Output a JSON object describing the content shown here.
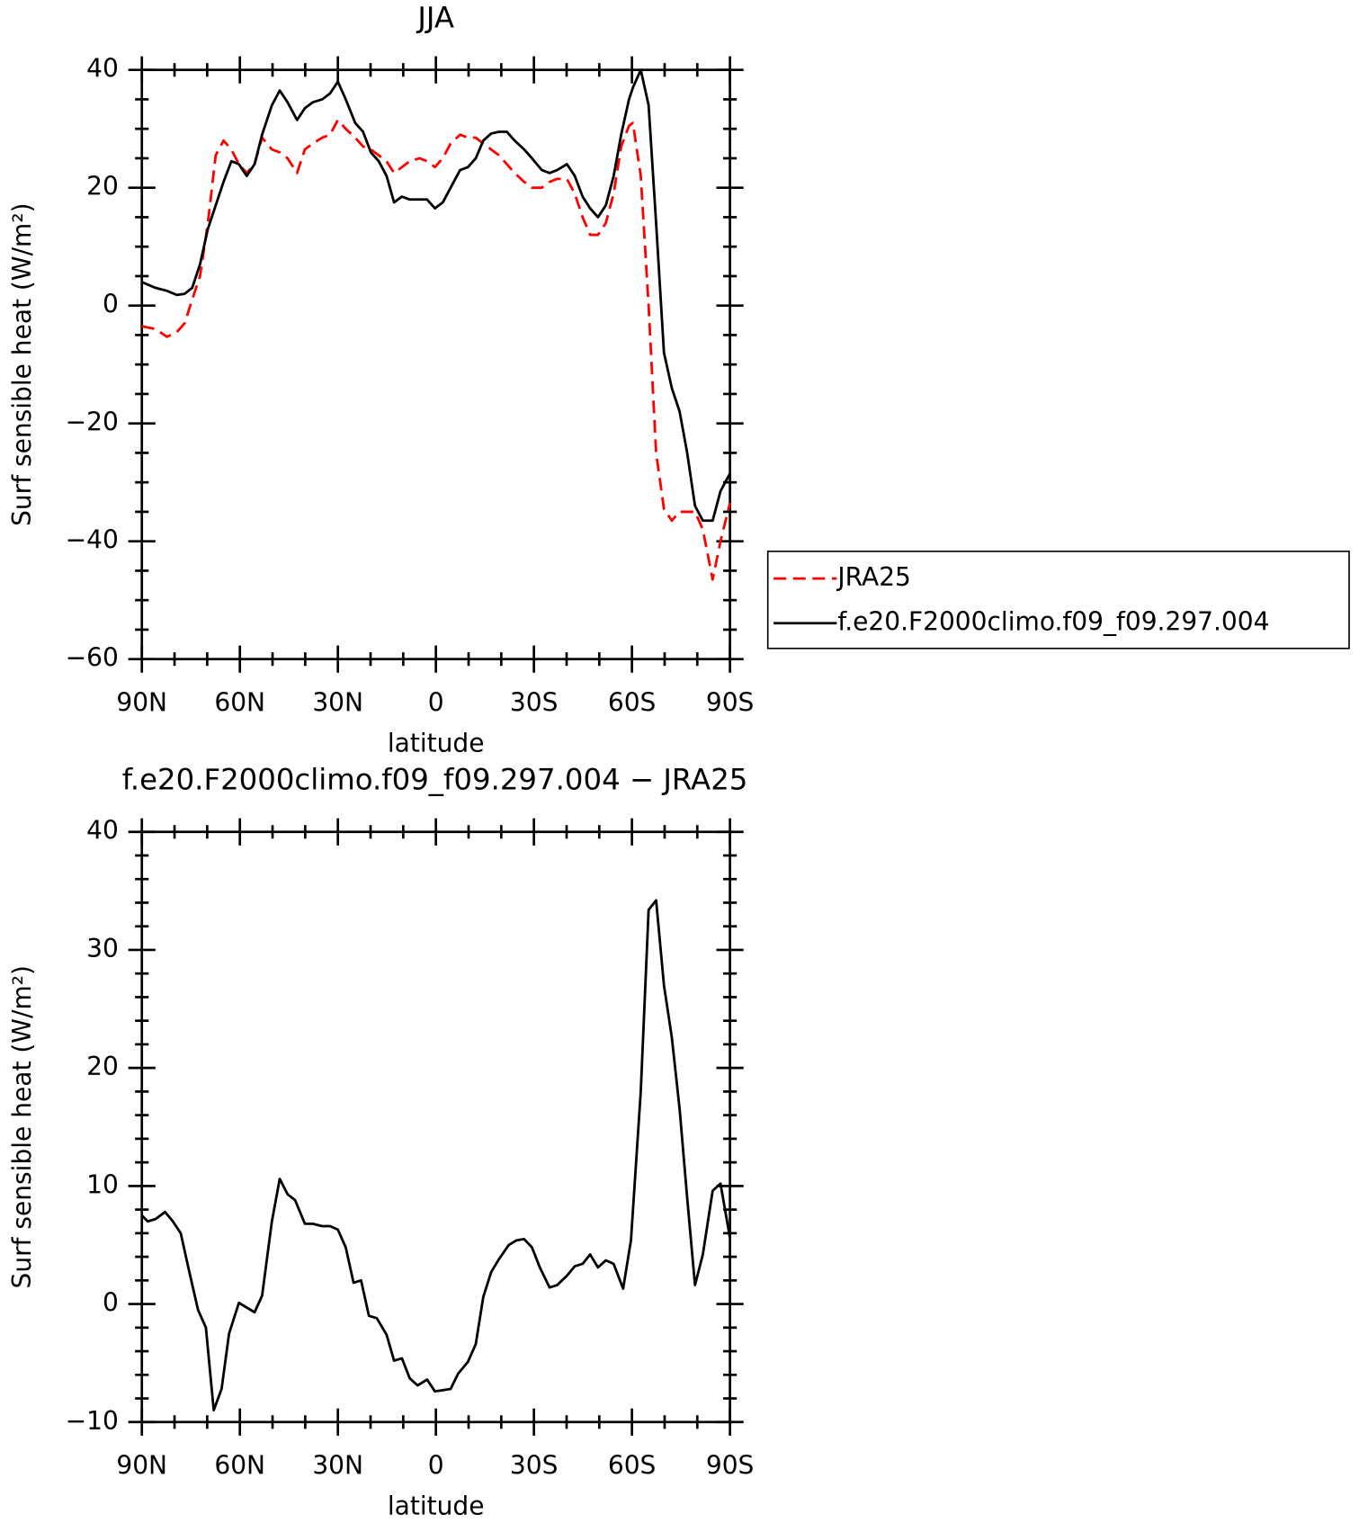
{
  "chart_data": [
    {
      "type": "line",
      "title": "JJA",
      "xlabel": "latitude",
      "ylabel": "Surf sensible heat (W/m²)",
      "x": [
        90,
        85.8,
        82.3,
        79.3,
        76.9,
        74.6,
        72.2,
        69.8,
        67.4,
        65,
        62.6,
        60.3,
        57.9,
        55.5,
        53.2,
        50.2,
        47.8,
        45.4,
        42.5,
        40.1,
        37.7,
        34.8,
        32.4,
        30,
        27.6,
        24.7,
        22.3,
        19.9,
        17.5,
        15.1,
        12.8,
        10.4,
        8,
        5,
        2.7,
        0.3,
        -2.1,
        -4.5,
        -7.4,
        -9.8,
        -12.2,
        -14.5,
        -16.9,
        -19.3,
        -21.7,
        -24.1,
        -27,
        -29.4,
        -32.4,
        -34.8,
        -37.1,
        -40.1,
        -42.5,
        -44.9,
        -47.2,
        -49.6,
        -52,
        -54.4,
        -56.7,
        -59.1,
        -60.3,
        -62.7,
        -65.1,
        -67.4,
        -69.8,
        -72.2,
        -74.6,
        -76.9,
        -79.3,
        -81.7,
        -84.7,
        -87.1,
        -90
      ],
      "series": [
        {
          "name": "JRA25",
          "color": "#ff0000",
          "dashed": true,
          "values": [
            -3.5,
            -4,
            -5.3,
            -4.5,
            -3,
            1,
            5,
            14,
            25.5,
            28,
            26.5,
            24,
            22.5,
            24,
            28.5,
            26.5,
            26,
            25,
            22.5,
            26.5,
            27.5,
            28.5,
            29,
            31.5,
            30,
            28.5,
            27,
            26.5,
            25.5,
            24.5,
            22.5,
            23.5,
            24.5,
            25,
            24.5,
            23.5,
            25,
            27.5,
            29,
            28.5,
            28.5,
            27.5,
            26.5,
            25.5,
            24,
            22.5,
            21,
            20,
            20,
            21,
            21.5,
            21.5,
            19,
            15,
            12,
            12,
            14,
            19,
            27,
            30.5,
            31,
            22,
            0,
            -25,
            -34.5,
            -36.5,
            -35,
            -35,
            -35,
            -38,
            -46.5,
            -40,
            -33.5
          ]
        },
        {
          "name": "f.e20.F2000climo.f09_f09.297.004",
          "color": "#000000",
          "dashed": false,
          "values": [
            4,
            3,
            2.5,
            1.8,
            2,
            3,
            7,
            13,
            17,
            21,
            24.5,
            24,
            22,
            24,
            29,
            34,
            36.5,
            34.5,
            31.5,
            33.5,
            34.5,
            35,
            36,
            38,
            35,
            31,
            29.5,
            26,
            24.5,
            22,
            17.5,
            18.5,
            18,
            18,
            18,
            16.5,
            17.5,
            20,
            23,
            23.5,
            25,
            28,
            29.2,
            29.5,
            29.5,
            28,
            26.5,
            25,
            23,
            22.5,
            23,
            24,
            22,
            18.5,
            16.5,
            15,
            17,
            22,
            29,
            35,
            37,
            40,
            34,
            14,
            -8,
            -14,
            -18,
            -25,
            -34,
            -36.5,
            -36.5,
            -31.5,
            -28.5
          ]
        }
      ],
      "xlim": [
        90,
        -90
      ],
      "xticks": [
        {
          "value": 90,
          "label": "90N"
        },
        {
          "value": 60,
          "label": "60N"
        },
        {
          "value": 30,
          "label": "30N"
        },
        0,
        {
          "value": -30,
          "label": "30S"
        },
        {
          "value": -60,
          "label": "60S"
        },
        {
          "value": -90,
          "label": "90S"
        }
      ],
      "xminorticks": [
        80,
        70,
        50,
        40,
        20,
        10,
        -10,
        -20,
        -40,
        -50,
        -70,
        -80
      ],
      "ylim": [
        -60,
        40
      ],
      "yticks": [
        {
          "value": -60,
          "label": "−60"
        },
        {
          "value": -40,
          "label": "−40"
        },
        {
          "value": -20,
          "label": "−20"
        },
        0,
        20,
        40
      ],
      "yminorticks": [
        -55,
        -50,
        -45,
        -35,
        -30,
        -25,
        -15,
        -10,
        -5,
        5,
        10,
        15,
        25,
        30,
        35
      ],
      "legend": "right"
    },
    {
      "type": "line",
      "title": "f.e20.F2000climo.f09_f09.297.004 − JRA25",
      "xlabel": "latitude",
      "ylabel": "Surf sensible heat (W/m²)",
      "x": [
        90,
        88.2,
        85.8,
        82.9,
        80.5,
        78.1,
        75.7,
        72.8,
        70.4,
        68,
        65.6,
        63.3,
        60.3,
        57.9,
        55.5,
        53.2,
        50.2,
        47.8,
        45.4,
        43.1,
        40.1,
        37.7,
        34.8,
        32.4,
        30,
        27.6,
        25.2,
        22.9,
        20.5,
        18.1,
        15.1,
        12.8,
        10.4,
        8,
        5.6,
        2.7,
        0.3,
        -2.1,
        -4.5,
        -6.8,
        -9.8,
        -12.2,
        -14.5,
        -16.9,
        -19.3,
        -22.3,
        -24.7,
        -27,
        -29.4,
        -31.8,
        -34.8,
        -37.1,
        -40.1,
        -42.5,
        -44.9,
        -47.2,
        -49.6,
        -52,
        -54.4,
        -57.3,
        -59.7,
        -62.7,
        -65.1,
        -67.4,
        -69.8,
        -72.2,
        -74.6,
        -76.9,
        -79.3,
        -81.7,
        -84.7,
        -87.1,
        -90
      ],
      "series": [
        {
          "color": "#000000",
          "dashed": false,
          "values": [
            7.5,
            7,
            7.2,
            7.8,
            7,
            6,
            3,
            -0.5,
            -2,
            -9,
            -7.2,
            -2.5,
            0.1,
            -0.3,
            -0.7,
            0.7,
            7,
            10.6,
            9.3,
            8.8,
            6.8,
            6.8,
            6.6,
            6.6,
            6.3,
            4.8,
            1.8,
            2,
            -1,
            -1.2,
            -2.6,
            -4.8,
            -4.6,
            -6.3,
            -6.9,
            -6.4,
            -7.4,
            -7.3,
            -7.2,
            -5.9,
            -4.9,
            -3.4,
            0.6,
            2.7,
            3.8,
            5,
            5.4,
            5.5,
            4.8,
            3.1,
            1.4,
            1.6,
            2.4,
            3.2,
            3.4,
            4.2,
            3.1,
            3.7,
            3.4,
            1.3,
            5.4,
            18,
            33.4,
            34.2,
            27,
            22.6,
            16.5,
            9,
            1.6,
            4.2,
            9.6,
            10.2,
            5.6
          ]
        }
      ],
      "xlim": [
        90,
        -90
      ],
      "xticks": [
        {
          "value": 90,
          "label": "90N"
        },
        {
          "value": 60,
          "label": "60N"
        },
        {
          "value": 30,
          "label": "30N"
        },
        0,
        {
          "value": -30,
          "label": "30S"
        },
        {
          "value": -60,
          "label": "60S"
        },
        {
          "value": -90,
          "label": "90S"
        }
      ],
      "xminorticks": [
        80,
        70,
        50,
        40,
        20,
        10,
        -10,
        -20,
        -40,
        -50,
        -70,
        -80
      ],
      "ylim": [
        -10,
        40
      ],
      "yticks": [
        {
          "value": -10,
          "label": "−10"
        },
        0,
        10,
        20,
        30,
        40
      ],
      "yminorticks": [
        -8,
        -6,
        -4,
        -2,
        2,
        4,
        6,
        8,
        12,
        14,
        16,
        18,
        22,
        24,
        26,
        28,
        32,
        34,
        36,
        38
      ]
    }
  ]
}
